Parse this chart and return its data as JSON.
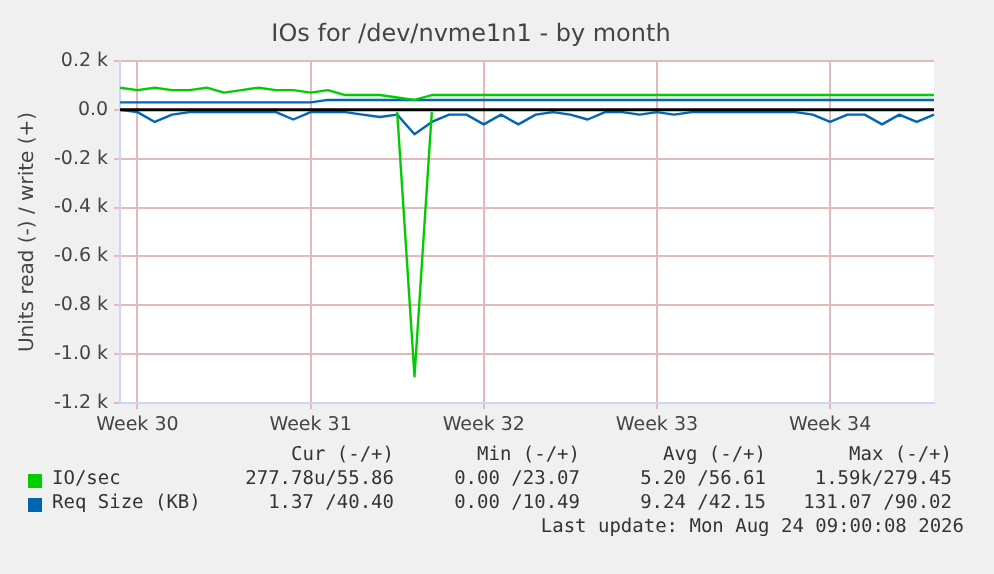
{
  "chart_data": {
    "type": "line",
    "title": "IOs for /dev/nvme1n1 - by month",
    "ylabel": "Units read (-) / write (+)",
    "categories": [
      null,
      "Week 30",
      null,
      null,
      null,
      null,
      null,
      null,
      null,
      null,
      null,
      "Week 31",
      null,
      null,
      null,
      null,
      null,
      null,
      null,
      null,
      null,
      "Week 32",
      null,
      null,
      null,
      null,
      null,
      null,
      null,
      null,
      null,
      "Week 33",
      null,
      null,
      null,
      null,
      null,
      null,
      null,
      null,
      null,
      "Week 34",
      null,
      null,
      null,
      null,
      null,
      null
    ],
    "series": [
      {
        "color": "#00cc00",
        "values": [
          null,
          null,
          null,
          null,
          null,
          null,
          null,
          null,
          null,
          null,
          null,
          null,
          null,
          null,
          null,
          null,
          -10,
          -1090,
          -10,
          null,
          null,
          null,
          null,
          null,
          null,
          null,
          null,
          null,
          null,
          null,
          null,
          null,
          null,
          null,
          null,
          null,
          null,
          null,
          null,
          null,
          null,
          null,
          null,
          null,
          null,
          null,
          null,
          null
        ]
      },
      {
        "name": "IO/sec",
        "color": "#00cc00",
        "values": [
          90,
          80,
          90,
          80,
          80,
          90,
          70,
          80,
          90,
          80,
          80,
          70,
          80,
          60,
          60,
          60,
          50,
          40,
          60,
          60,
          60,
          60,
          60,
          60,
          60,
          60,
          60,
          60,
          60,
          60,
          60,
          60,
          60,
          60,
          60,
          60,
          60,
          60,
          60,
          60,
          60,
          60,
          60,
          60,
          60,
          60,
          60,
          60
        ]
      },
      {
        "color": "#0066b3",
        "values": [
          0,
          -10,
          -50,
          -20,
          -10,
          -10,
          -10,
          -10,
          -10,
          -10,
          -40,
          -10,
          -10,
          -10,
          -20,
          -30,
          -20,
          -100,
          -50,
          -20,
          -20,
          -60,
          -20,
          -60,
          -20,
          -10,
          -20,
          -40,
          -10,
          -10,
          -20,
          -10,
          -20,
          -10,
          -10,
          -10,
          -10,
          -10,
          -10,
          -10,
          -20,
          -50,
          -20,
          -20,
          -60,
          -20,
          -50,
          -20
        ]
      },
      {
        "name": "Req Size (KB)",
        "color": "#0066b3",
        "values": [
          30,
          30,
          30,
          30,
          30,
          30,
          30,
          30,
          30,
          30,
          30,
          30,
          40,
          40,
          40,
          40,
          40,
          40,
          40,
          40,
          40,
          40,
          40,
          40,
          40,
          40,
          40,
          40,
          40,
          40,
          40,
          40,
          40,
          40,
          40,
          40,
          40,
          40,
          40,
          40,
          40,
          40,
          40,
          40,
          40,
          40,
          40,
          40
        ]
      }
    ],
    "ylim": [
      -1200,
      200
    ],
    "yticks": [
      {
        "value": -1200,
        "label": "-1.2 k"
      },
      {
        "value": -1000,
        "label": "-1.0 k"
      },
      {
        "value": -800,
        "label": "-0.8 k"
      },
      {
        "value": -600,
        "label": "-0.6 k"
      },
      {
        "value": -400,
        "label": "-0.4 k"
      },
      {
        "value": -200,
        "label": "-0.2 k"
      },
      {
        "value": 0,
        "label": "0.0"
      },
      {
        "value": 200,
        "label": "0.2 k"
      }
    ],
    "ref_lines": [
      {
        "axis": "y",
        "value": 0,
        "color": "#000000"
      }
    ],
    "grid": true,
    "legend": "bottom",
    "marker": "none",
    "line_style": "solid",
    "annotations": [
      "Cur (-/+)",
      "Min (-/+)",
      "Avg (-/+)",
      "Max (-/+)",
      "277.78u/55.86",
      "0.00 /23.07",
      "5.20 /56.61",
      "1.59k/279.45",
      "1.37 /40.40",
      "0.00 /10.49",
      "9.24 /42.15",
      "131.07 /90.02",
      "Last update: Mon Aug 24 09:00:08 2026"
    ]
  }
}
